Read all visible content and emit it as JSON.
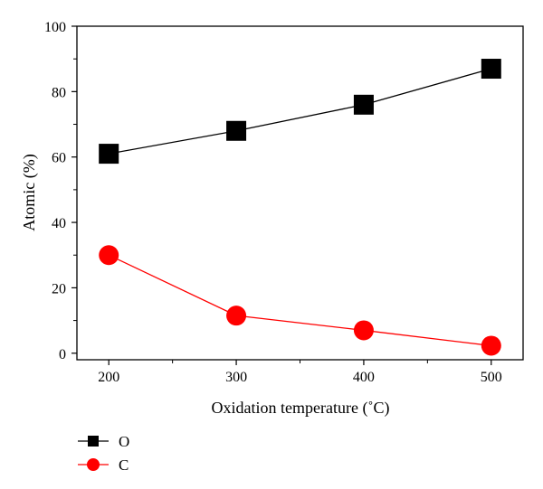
{
  "chart_data": {
    "type": "line",
    "xlabel": "Oxidation temperature (˚C)",
    "ylabel": "Atomic (%)",
    "x": [
      200,
      300,
      400,
      500
    ],
    "xlim": [
      175,
      525
    ],
    "ylim": [
      -2,
      100
    ],
    "xticks": [
      200,
      300,
      400,
      500
    ],
    "yticks": [
      0,
      20,
      40,
      60,
      80,
      100
    ],
    "grid": false,
    "legend_position": "bottom-left, below plot",
    "series": [
      {
        "name": "O",
        "marker": "square",
        "color": "#000000",
        "values": [
          61,
          68,
          76,
          87
        ]
      },
      {
        "name": "C",
        "marker": "circle",
        "color": "#ff0000",
        "values": [
          30,
          11.5,
          7,
          2.3
        ]
      }
    ]
  }
}
